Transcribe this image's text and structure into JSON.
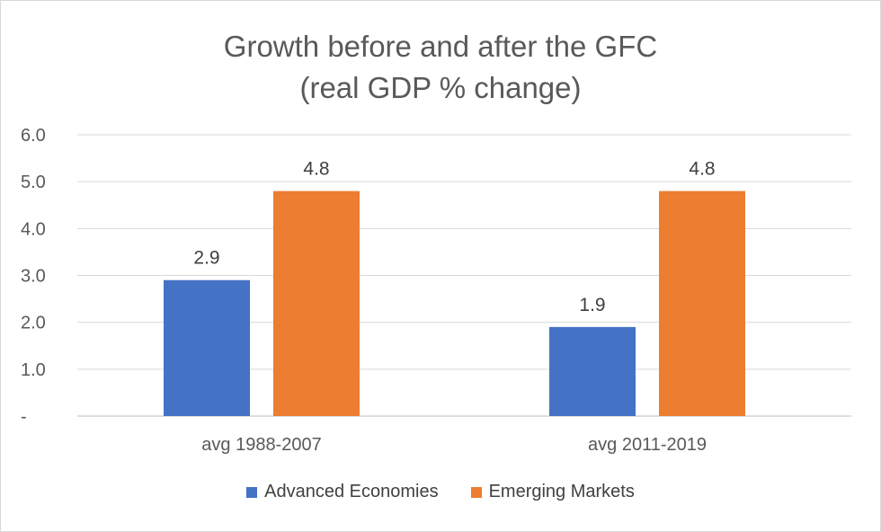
{
  "chart_data": {
    "type": "bar",
    "title": "Growth before and after the GFC",
    "subtitle": "(real GDP % change)",
    "categories": [
      "avg 1988-2007",
      "avg 2011-2019"
    ],
    "series": [
      {
        "name": "Advanced Economies",
        "values": [
          2.9,
          1.9
        ],
        "color": "#4472c4",
        "labels": [
          "2.9",
          "1.9"
        ]
      },
      {
        "name": "Emerging Markets",
        "values": [
          4.8,
          4.8
        ],
        "color": "#ed7d31",
        "labels": [
          "4.8",
          "4.8"
        ]
      }
    ],
    "ylim": [
      0,
      6
    ],
    "y_ticks": [
      {
        "value": 0,
        "label": "-"
      },
      {
        "value": 1,
        "label": "1.0"
      },
      {
        "value": 2,
        "label": "2.0"
      },
      {
        "value": 3,
        "label": "3.0"
      },
      {
        "value": 4,
        "label": "4.0"
      },
      {
        "value": 5,
        "label": "5.0"
      },
      {
        "value": 6,
        "label": "6.0"
      }
    ],
    "xlabel": "",
    "ylabel": "",
    "grid": true,
    "legend_position": "bottom"
  }
}
